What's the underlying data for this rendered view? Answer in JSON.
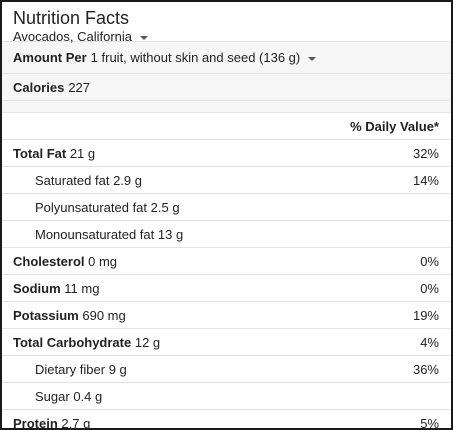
{
  "header": {
    "title": "Nutrition Facts",
    "food": "Avocados, California"
  },
  "serving": {
    "label": "Amount Per",
    "value": "1 fruit, without skin and seed (136 g)"
  },
  "calories": {
    "label": "Calories",
    "value": "227"
  },
  "daily_value_header": "% Daily Value*",
  "nutrients": [
    {
      "label": "Total Fat",
      "amount": "21 g",
      "dv": "32%",
      "bold": true
    },
    {
      "label": "Saturated fat",
      "amount": "2.9 g",
      "dv": "14%",
      "bold": false
    },
    {
      "label": "Polyunsaturated fat",
      "amount": "2.5 g",
      "dv": "",
      "bold": false
    },
    {
      "label": "Monounsaturated fat",
      "amount": "13 g",
      "dv": "",
      "bold": false
    },
    {
      "label": "Cholesterol",
      "amount": "0 mg",
      "dv": "0%",
      "bold": true
    },
    {
      "label": "Sodium",
      "amount": "11 mg",
      "dv": "0%",
      "bold": true
    },
    {
      "label": "Potassium",
      "amount": "690 mg",
      "dv": "19%",
      "bold": true
    },
    {
      "label": "Total Carbohydrate",
      "amount": "12 g",
      "dv": "4%",
      "bold": true
    },
    {
      "label": "Dietary fiber",
      "amount": "9 g",
      "dv": "36%",
      "bold": false
    },
    {
      "label": "Sugar",
      "amount": "0.4 g",
      "dv": "",
      "bold": false
    },
    {
      "label": "Protein",
      "amount": "2.7 g",
      "dv": "5%",
      "bold": true
    }
  ],
  "colors": {
    "border": "#1a1a1a",
    "row_divider": "#e3e3e3",
    "shaded_bg": "#f6f6f6",
    "text": "#222222"
  },
  "icons": {
    "food_dropdown": "chevron-down-icon",
    "serving_dropdown": "chevron-down-icon"
  }
}
